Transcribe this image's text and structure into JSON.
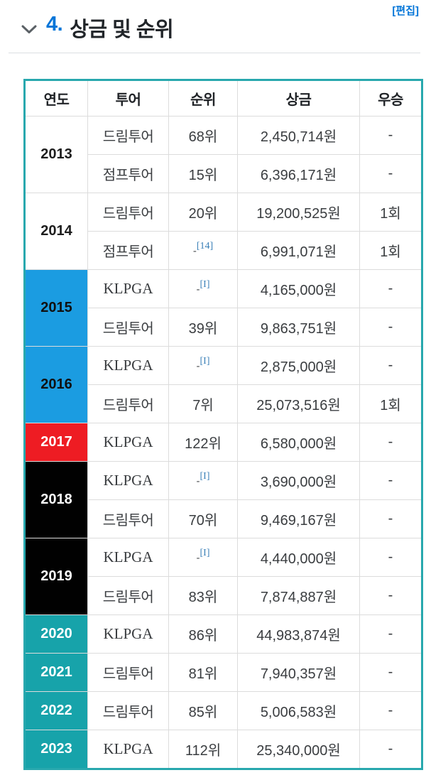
{
  "section": {
    "collapse_icon": "chevron-down",
    "number": "4.",
    "title": "상금 및 순위",
    "edit_label": "[편집]"
  },
  "colors": {
    "accent": "#0275d8",
    "table_border": "#28a8ae",
    "footnote": "#3c81b8",
    "year_styles": {
      "plain": {
        "bg": "#ffffff",
        "fg": "#1d1d1d"
      },
      "blue": {
        "bg": "#1b9ce1",
        "fg": "#101010"
      },
      "red": {
        "bg": "#ee1c23",
        "fg": "#ffffff"
      },
      "black": {
        "bg": "#010101",
        "fg": "#ffffff"
      },
      "teal": {
        "bg": "#17a3aa",
        "fg": "#ffffff"
      }
    }
  },
  "table": {
    "headers": [
      "연도",
      "투어",
      "순위",
      "상금",
      "우승"
    ],
    "serif_tours": [
      "KLPGA"
    ],
    "year_groups": [
      {
        "year": "2013",
        "style": "plain",
        "rows": [
          {
            "tour": "드림투어",
            "rank": "68위",
            "prize": "2,450,714원",
            "win": "-"
          },
          {
            "tour": "점프투어",
            "rank": "15위",
            "prize": "6,396,171원",
            "win": "-"
          }
        ]
      },
      {
        "year": "2014",
        "style": "plain",
        "rows": [
          {
            "tour": "드림투어",
            "rank": "20위",
            "prize": "19,200,525원",
            "win": "1회"
          },
          {
            "tour": "점프투어",
            "rank": "-",
            "rank_note": "[14]",
            "prize": "6,991,071원",
            "win": "1회"
          }
        ]
      },
      {
        "year": "2015",
        "style": "blue",
        "rows": [
          {
            "tour": "KLPGA",
            "rank": "-",
            "rank_note": "[I]",
            "prize": "4,165,000원",
            "win": "-"
          },
          {
            "tour": "드림투어",
            "rank": "39위",
            "prize": "9,863,751원",
            "win": "-"
          }
        ]
      },
      {
        "year": "2016",
        "style": "blue",
        "rows": [
          {
            "tour": "KLPGA",
            "rank": "-",
            "rank_note": "[I]",
            "prize": "2,875,000원",
            "win": "-"
          },
          {
            "tour": "드림투어",
            "rank": "7위",
            "prize": "25,073,516원",
            "win": "1회"
          }
        ]
      },
      {
        "year": "2017",
        "style": "red",
        "rows": [
          {
            "tour": "KLPGA",
            "rank": "122위",
            "prize": "6,580,000원",
            "win": "-"
          }
        ]
      },
      {
        "year": "2018",
        "style": "black",
        "rows": [
          {
            "tour": "KLPGA",
            "rank": "-",
            "rank_note": "[I]",
            "prize": "3,690,000원",
            "win": "-"
          },
          {
            "tour": "드림투어",
            "rank": "70위",
            "prize": "9,469,167원",
            "win": "-"
          }
        ]
      },
      {
        "year": "2019",
        "style": "black",
        "rows": [
          {
            "tour": "KLPGA",
            "rank": "-",
            "rank_note": "[I]",
            "prize": "4,440,000원",
            "win": "-"
          },
          {
            "tour": "드림투어",
            "rank": "83위",
            "prize": "7,874,887원",
            "win": "-"
          }
        ]
      },
      {
        "year": "2020",
        "style": "teal",
        "rows": [
          {
            "tour": "KLPGA",
            "rank": "86위",
            "prize": "44,983,874원",
            "win": "-"
          }
        ]
      },
      {
        "year": "2021",
        "style": "teal",
        "rows": [
          {
            "tour": "드림투어",
            "rank": "81위",
            "prize": "7,940,357원",
            "win": "-"
          }
        ]
      },
      {
        "year": "2022",
        "style": "teal",
        "rows": [
          {
            "tour": "드림투어",
            "rank": "85위",
            "prize": "5,006,583원",
            "win": "-"
          }
        ]
      },
      {
        "year": "2023",
        "style": "teal",
        "rows": [
          {
            "tour": "KLPGA",
            "rank": "112위",
            "prize": "25,340,000원",
            "win": "-"
          }
        ]
      }
    ]
  }
}
